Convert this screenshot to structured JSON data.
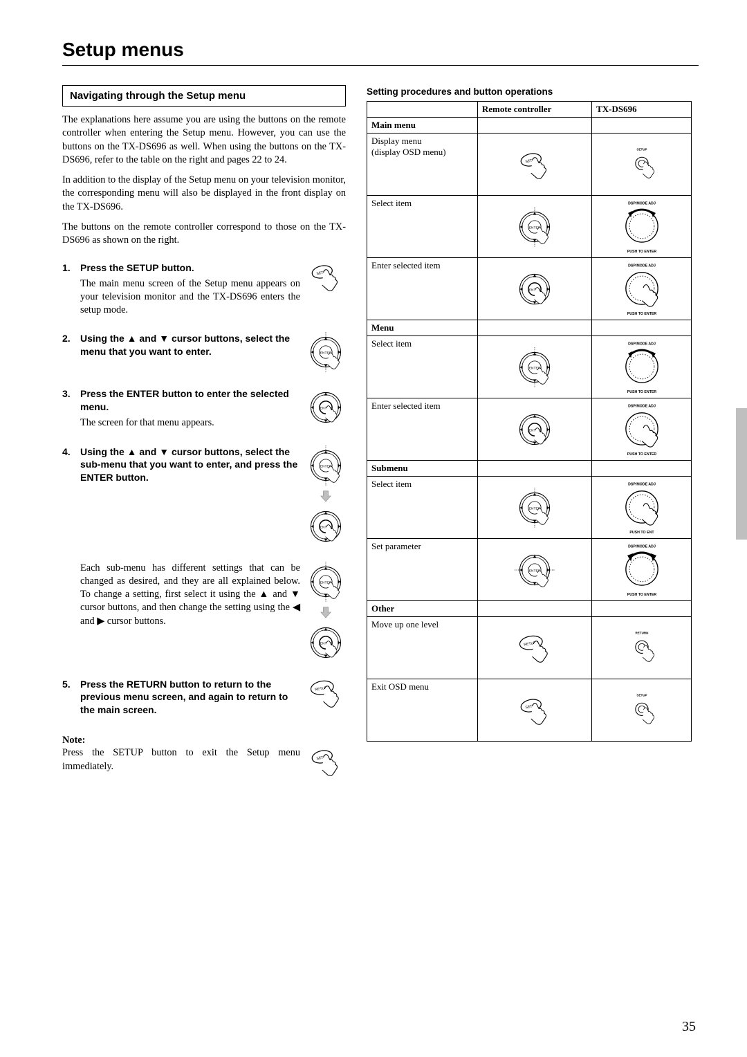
{
  "page": {
    "title": "Setup menus",
    "number": "35"
  },
  "colors": {
    "text": "#000000",
    "background": "#ffffff",
    "side_tab": "#bfbfbf"
  },
  "left": {
    "subtitle": "Navigating through the Setup menu",
    "para1": "The explanations here assume you are using the buttons on the remote controller when entering the Setup menu. However, you can use the buttons on the TX-DS696 as well. When using the buttons on the TX-DS696, refer to the table on the right and pages 22 to 24.",
    "para2": "In addition to the display of the Setup menu on your television monitor, the corresponding menu will also be displayed in the front display on the TX-DS696.",
    "para3": "The buttons on the remote controller correspond to those on the TX-DS696 as shown on the right.",
    "steps": [
      {
        "num": "1.",
        "bold": "Press the SETUP button.",
        "plain": "The main menu screen of the Setup menu appears on your television monitor and the TX-DS696 enters the setup mode.",
        "icons": [
          "setup-btn"
        ]
      },
      {
        "num": "2.",
        "bold": "Using the ▲ and ▼ cursor buttons, select the menu that you want to enter.",
        "plain": "",
        "icons": [
          "dial-enter"
        ]
      },
      {
        "num": "3.",
        "bold": "Press the ENTER button to enter the selected menu.",
        "plain": "The screen for that menu appears.",
        "icons": [
          "dial-enter-press"
        ]
      },
      {
        "num": "4.",
        "bold": "Using the ▲ and ▼ cursor buttons, select the sub-menu that you want to enter, and press the ENTER button.",
        "plain": "",
        "icons": [
          "dial-enter",
          "arrow-down",
          "dial-enter-press"
        ]
      },
      {
        "num": "",
        "bold": "",
        "plain": "Each sub-menu has different settings that can be changed as desired, and they are all explained below. To change a setting, first select it using the ▲ and ▼ cursor buttons, and then change the setting using the ◀ and ▶ cursor buttons.",
        "icons": [
          "dial-enter",
          "arrow-down",
          "dial-enter-press"
        ]
      },
      {
        "num": "5.",
        "bold": "Press the RETURN button to return to the previous menu screen, and again to return to the main screen.",
        "plain": "",
        "icons": [
          "return-btn"
        ]
      }
    ],
    "note_label": "Note:",
    "note_text": "Press the SETUP button to exit the Setup menu immediately.",
    "note_icon": "setup-btn"
  },
  "right": {
    "heading": "Setting procedures and button operations",
    "headers": [
      "",
      "Remote controller",
      "TX-DS696"
    ],
    "sections": [
      {
        "title": "Main menu",
        "rows": [
          {
            "action": "Display menu",
            "sub": "(display OSD menu)",
            "rc_icon": "setup-btn",
            "tx_icon": "knob-setup"
          },
          {
            "action": "Select item",
            "rc_icon": "dial-enter",
            "tx_icon": "knob-adj-rotate"
          },
          {
            "action": "Enter selected item",
            "rc_icon": "dial-enter-press",
            "tx_icon": "knob-adj-push"
          }
        ]
      },
      {
        "title": "Menu",
        "rows": [
          {
            "action": "Select item",
            "rc_icon": "dial-enter",
            "tx_icon": "knob-adj-rotate"
          },
          {
            "action": "Enter selected item",
            "rc_icon": "dial-enter-press",
            "tx_icon": "knob-adj-push"
          }
        ]
      },
      {
        "title": "Submenu",
        "rows": [
          {
            "action": "Select item",
            "rc_icon": "dial-enter",
            "tx_icon": "knob-adj-push-alt"
          },
          {
            "action": "Set parameter",
            "rc_icon": "dial-lr",
            "tx_icon": "knob-adj-rotate-alt"
          }
        ]
      },
      {
        "title": "Other",
        "rows": [
          {
            "action": "Move up one level",
            "rc_icon": "return-btn",
            "tx_icon": "knob-return"
          },
          {
            "action": "Exit OSD menu",
            "rc_icon": "setup-btn",
            "tx_icon": "knob-setup"
          }
        ]
      }
    ]
  },
  "icon_labels": {
    "setup-btn": "SETUP",
    "return-btn": "RETURN",
    "dial-enter": "ENTER",
    "dial-enter-press": "ENTER",
    "dial-lr": "ENTER",
    "knob-setup": "SETUP",
    "knob-return": "RETURN",
    "knob-adj-rotate": "DSP/MODE ADJ PUSH TO ENTER",
    "knob-adj-push": "DSP/MODE ADJ PUSH TO ENTER",
    "knob-adj-push-alt": "DSP/MODE ADJ PUSH TO ENT",
    "knob-adj-rotate-alt": "DSP/MODE ADJ PUSH TO ENTER"
  }
}
